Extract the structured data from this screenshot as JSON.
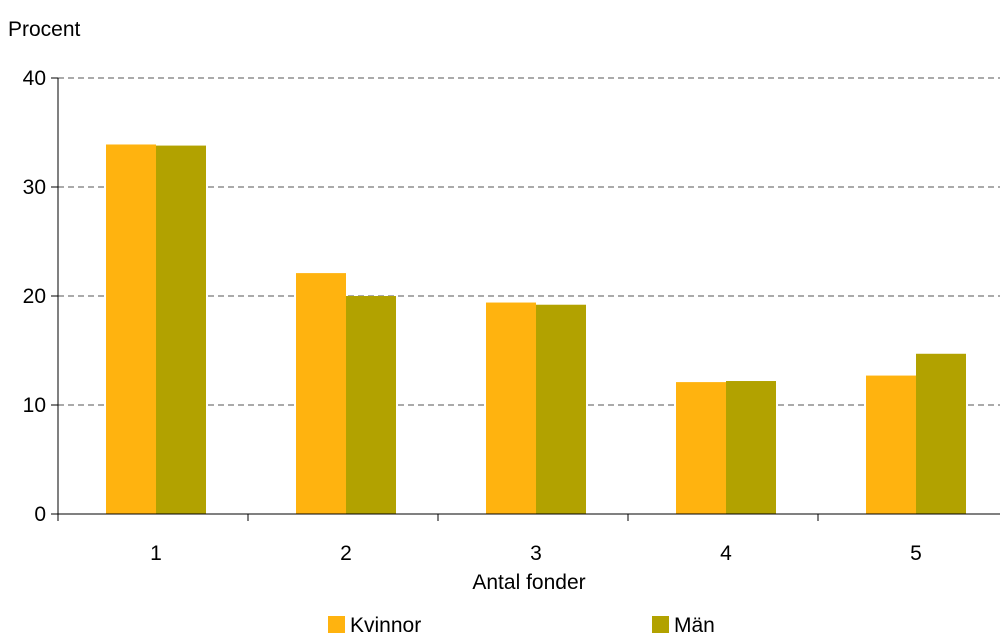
{
  "chart_data": {
    "type": "bar",
    "ylabel": "Procent",
    "xlabel": "Antal fonder",
    "categories": [
      "1",
      "2",
      "3",
      "4",
      "5"
    ],
    "series": [
      {
        "name": "Kvinnor",
        "color": "#FFB30F",
        "values": [
          33.9,
          22.1,
          19.4,
          12.1,
          12.7
        ]
      },
      {
        "name": "Män",
        "color": "#B2A200",
        "values": [
          33.8,
          20.0,
          19.2,
          12.2,
          14.7
        ]
      }
    ],
    "ylim": [
      0,
      40
    ],
    "yticks": [
      "0",
      "10",
      "20",
      "30",
      "40"
    ],
    "grid": true,
    "legend_position": "bottom"
  }
}
